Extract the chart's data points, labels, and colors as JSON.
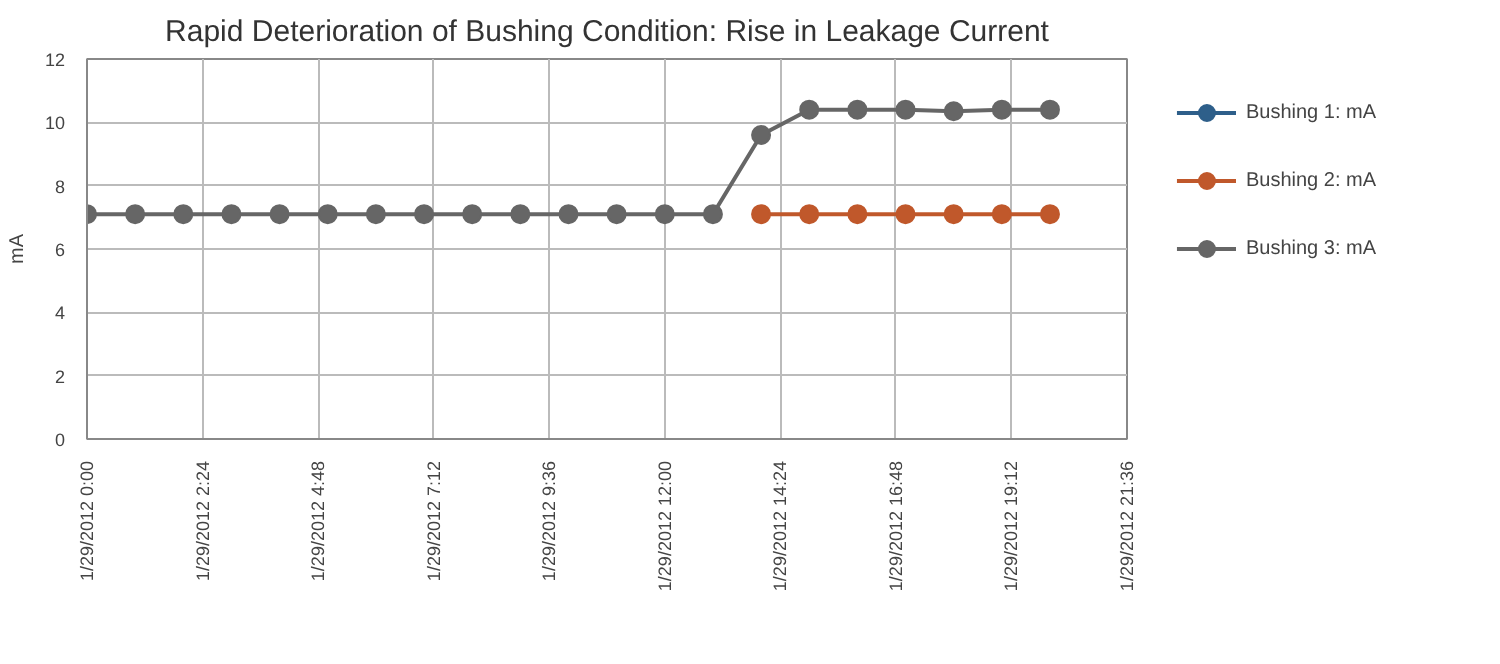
{
  "chart_data": {
    "type": "line",
    "title": "Rapid Deterioration of Bushing Condition: Rise in Leakage Current",
    "ylabel": "mA",
    "x": [
      "2012-01-29T00:00",
      "2012-01-29T01:00",
      "2012-01-29T02:00",
      "2012-01-29T03:00",
      "2012-01-29T04:00",
      "2012-01-29T05:00",
      "2012-01-29T06:00",
      "2012-01-29T07:00",
      "2012-01-29T08:00",
      "2012-01-29T09:00",
      "2012-01-29T10:00",
      "2012-01-29T11:00",
      "2012-01-29T12:00",
      "2012-01-29T13:00",
      "2012-01-29T14:00",
      "2012-01-29T15:00",
      "2012-01-29T16:00",
      "2012-01-29T17:00",
      "2012-01-29T18:00",
      "2012-01-29T19:00",
      "2012-01-29T20:00"
    ],
    "series": [
      {
        "name": "Bushing 1: mA",
        "color": "#2e5f8a",
        "values": [
          null,
          null,
          null,
          null,
          null,
          null,
          null,
          null,
          null,
          null,
          null,
          null,
          null,
          null,
          null,
          null,
          null,
          null,
          null,
          null,
          null
        ]
      },
      {
        "name": "Bushing 2: mA",
        "color": "#c0582b",
        "values": [
          null,
          null,
          null,
          null,
          null,
          null,
          null,
          null,
          null,
          null,
          null,
          null,
          null,
          null,
          7.1,
          7.1,
          7.1,
          7.1,
          7.1,
          7.1,
          7.1
        ]
      },
      {
        "name": "Bushing 3: mA",
        "color": "#666666",
        "values": [
          7.1,
          7.1,
          7.1,
          7.1,
          7.1,
          7.1,
          7.1,
          7.1,
          7.1,
          7.1,
          7.1,
          7.1,
          7.1,
          7.1,
          9.6,
          10.4,
          10.4,
          10.4,
          10.35,
          10.4,
          10.4
        ]
      }
    ],
    "xlim": [
      "2012-01-29T00:00",
      "2012-01-29T21:36"
    ],
    "xticks": [
      {
        "value": "2012-01-29T00:00",
        "label": "1/29/2012 0:00"
      },
      {
        "value": "2012-01-29T02:24",
        "label": "1/29/2012 2:24"
      },
      {
        "value": "2012-01-29T04:48",
        "label": "1/29/2012 4:48"
      },
      {
        "value": "2012-01-29T07:12",
        "label": "1/29/2012 7:12"
      },
      {
        "value": "2012-01-29T09:36",
        "label": "1/29/2012 9:36"
      },
      {
        "value": "2012-01-29T12:00",
        "label": "1/29/2012 12:00"
      },
      {
        "value": "2012-01-29T14:24",
        "label": "1/29/2012 14:24"
      },
      {
        "value": "2012-01-29T16:48",
        "label": "1/29/2012 16:48"
      },
      {
        "value": "2012-01-29T19:12",
        "label": "1/29/2012 19:12"
      },
      {
        "value": "2012-01-29T21:36",
        "label": "1/29/2012 21:36"
      }
    ],
    "ylim": [
      0,
      12
    ],
    "yticks": [
      0,
      2,
      4,
      6,
      8,
      10,
      12
    ],
    "grid": true,
    "legend": "right",
    "marker": "circle",
    "line_style": "solid"
  }
}
